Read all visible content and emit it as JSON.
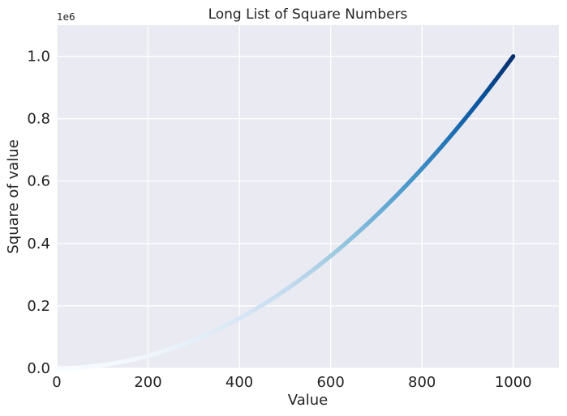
{
  "chart_data": {
    "type": "scatter",
    "title": "Long List of Square Numbers",
    "xlabel": "Value",
    "ylabel": "Square of value",
    "x_range": [
      1,
      1000
    ],
    "y_rule": "y = x^2",
    "xlim": [
      0,
      1100
    ],
    "ylim": [
      0,
      1100000
    ],
    "xticks": [
      0,
      200,
      400,
      600,
      800,
      1000
    ],
    "xtick_labels": [
      "0",
      "200",
      "400",
      "600",
      "800",
      "1000"
    ],
    "yticks": [
      0,
      200000,
      400000,
      600000,
      800000,
      1000000
    ],
    "ytick_labels": [
      "0.0",
      "0.2",
      "0.4",
      "0.6",
      "0.8",
      "1.0"
    ],
    "y_offset_label": "1e6",
    "colormap": "Blues",
    "color_by": "y",
    "grid": true,
    "legend": "none"
  },
  "colors": {
    "plot_background": "#eaeaf2",
    "grid": "#ffffff",
    "colormap_low": "#f7fbff",
    "colormap_high": "#08306b"
  }
}
